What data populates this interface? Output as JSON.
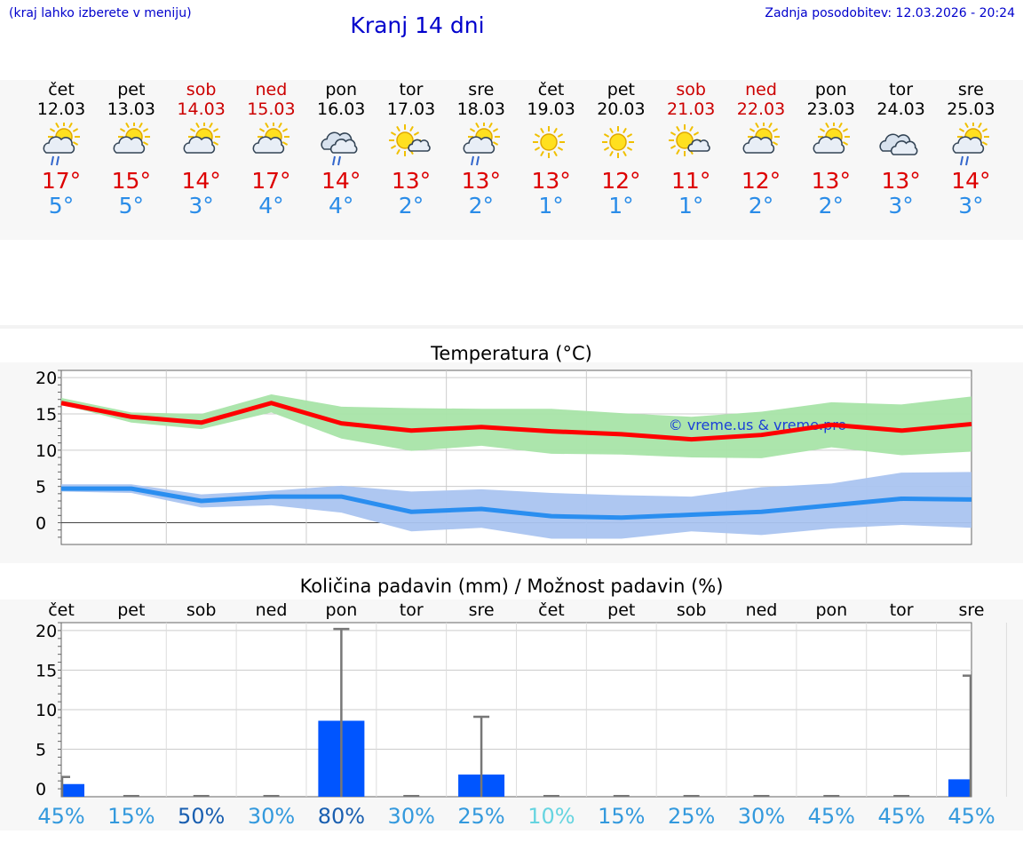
{
  "header": {
    "hint": "(kraj lahko izberete v meniju)",
    "title": "Kranj 14 dni",
    "updated": "Zadnja posodobitev: 12.03.2026 - 20:24"
  },
  "days": [
    {
      "name": "čet",
      "date": "12.03",
      "weekend": false,
      "icon": "sun-cloud-rain-icon",
      "max": "17°",
      "min": "5°",
      "rain_chance": "45%",
      "rain_color": "#3399dd"
    },
    {
      "name": "pet",
      "date": "13.03",
      "weekend": false,
      "icon": "sun-cloud-icon",
      "max": "15°",
      "min": "5°",
      "rain_chance": "15%",
      "rain_color": "#3399dd"
    },
    {
      "name": "sob",
      "date": "14.03",
      "weekend": true,
      "icon": "sun-cloud-icon",
      "max": "14°",
      "min": "3°",
      "rain_chance": "50%",
      "rain_color": "#1a5fb0"
    },
    {
      "name": "ned",
      "date": "15.03",
      "weekend": true,
      "icon": "sun-cloud-icon",
      "max": "17°",
      "min": "4°",
      "rain_chance": "30%",
      "rain_color": "#3399dd"
    },
    {
      "name": "pon",
      "date": "16.03",
      "weekend": false,
      "icon": "cloud-rain-icon",
      "max": "14°",
      "min": "4°",
      "rain_chance": "80%",
      "rain_color": "#1a5fb0"
    },
    {
      "name": "tor",
      "date": "17.03",
      "weekend": false,
      "icon": "sun-small-cloud-icon",
      "max": "13°",
      "min": "2°",
      "rain_chance": "30%",
      "rain_color": "#3399dd"
    },
    {
      "name": "sre",
      "date": "18.03",
      "weekend": false,
      "icon": "sun-cloud-rain-icon",
      "max": "13°",
      "min": "2°",
      "rain_chance": "25%",
      "rain_color": "#3399dd"
    },
    {
      "name": "čet",
      "date": "19.03",
      "weekend": false,
      "icon": "sun-icon",
      "max": "13°",
      "min": "1°",
      "rain_chance": "10%",
      "rain_color": "#66d4e0"
    },
    {
      "name": "pet",
      "date": "20.03",
      "weekend": false,
      "icon": "sun-icon",
      "max": "12°",
      "min": "1°",
      "rain_chance": "15%",
      "rain_color": "#3399dd"
    },
    {
      "name": "sob",
      "date": "21.03",
      "weekend": true,
      "icon": "sun-small-cloud-icon",
      "max": "11°",
      "min": "1°",
      "rain_chance": "25%",
      "rain_color": "#3399dd"
    },
    {
      "name": "ned",
      "date": "22.03",
      "weekend": true,
      "icon": "sun-cloud-icon",
      "max": "12°",
      "min": "2°",
      "rain_chance": "30%",
      "rain_color": "#3399dd"
    },
    {
      "name": "pon",
      "date": "23.03",
      "weekend": false,
      "icon": "sun-cloud-icon",
      "max": "13°",
      "min": "2°",
      "rain_chance": "45%",
      "rain_color": "#3399dd"
    },
    {
      "name": "tor",
      "date": "24.03",
      "weekend": false,
      "icon": "cloud-icon",
      "max": "13°",
      "min": "3°",
      "rain_chance": "45%",
      "rain_color": "#3399dd"
    },
    {
      "name": "sre",
      "date": "25.03",
      "weekend": false,
      "icon": "sun-cloud-rain-icon",
      "max": "14°",
      "min": "3°",
      "rain_chance": "45%",
      "rain_color": "#3399dd"
    }
  ],
  "chart_data": [
    {
      "type": "line",
      "title": "Temperatura (°C)",
      "watermark": "© vreme.us & vreme.pro",
      "ylim": [
        -3,
        21
      ],
      "yticks": [
        "20",
        "15",
        "10",
        "5",
        "0"
      ],
      "ytick_values": [
        20,
        15,
        10,
        5,
        0
      ],
      "series": [
        {
          "name": "max",
          "color": "#ff0000",
          "values": [
            16.5,
            14.6,
            13.8,
            16.5,
            13.7,
            12.7,
            13.2,
            12.6,
            12.2,
            11.5,
            12.1,
            13.5,
            12.7,
            13.6
          ],
          "band_low": [
            16.3,
            13.8,
            12.9,
            15.2,
            11.6,
            9.9,
            10.6,
            9.5,
            9.4,
            9.0,
            8.9,
            10.4,
            9.3,
            9.8
          ],
          "band_high": [
            17.2,
            15.2,
            15.0,
            17.7,
            16.0,
            15.8,
            15.7,
            15.7,
            15.1,
            14.6,
            15.3,
            16.6,
            16.3,
            17.4
          ],
          "band_color": "#a8e4a8"
        },
        {
          "name": "min",
          "color": "#2a8ef0",
          "values": [
            4.7,
            4.7,
            3.0,
            3.6,
            3.6,
            1.5,
            1.9,
            0.9,
            0.7,
            1.1,
            1.5,
            2.4,
            3.3,
            3.2
          ],
          "band_low": [
            4.3,
            4.1,
            2.1,
            2.4,
            1.4,
            -1.2,
            -0.7,
            -2.2,
            -2.2,
            -1.2,
            -1.7,
            -0.8,
            -0.3,
            -0.7
          ],
          "band_high": [
            5.3,
            5.3,
            3.9,
            4.4,
            5.1,
            4.3,
            4.6,
            4.1,
            3.8,
            3.6,
            4.9,
            5.4,
            6.9,
            7.0
          ],
          "band_color": "#aac4f0"
        }
      ]
    },
    {
      "type": "bar",
      "title": "Količina padavin (mm) / Možnost padavin (%)",
      "categories": [
        "čet",
        "pet",
        "sob",
        "ned",
        "pon",
        "tor",
        "sre",
        "čet",
        "pet",
        "sob",
        "ned",
        "pon",
        "tor",
        "sre"
      ],
      "ylim": [
        -1,
        21
      ],
      "yticks": [
        "20",
        "15",
        "10",
        "5",
        "0"
      ],
      "ytick_values": [
        20,
        15,
        10,
        5,
        0
      ],
      "values": [
        0.6,
        0,
        0,
        0,
        8.6,
        0,
        1.8,
        0,
        0,
        0,
        0,
        0,
        0,
        1.2
      ],
      "error_high": [
        1.5,
        0,
        0,
        0,
        20.2,
        0,
        9.1,
        0,
        0,
        0,
        0,
        0,
        0,
        14.3
      ],
      "bar_color": "#0055ff",
      "error_color": "#777777"
    }
  ]
}
